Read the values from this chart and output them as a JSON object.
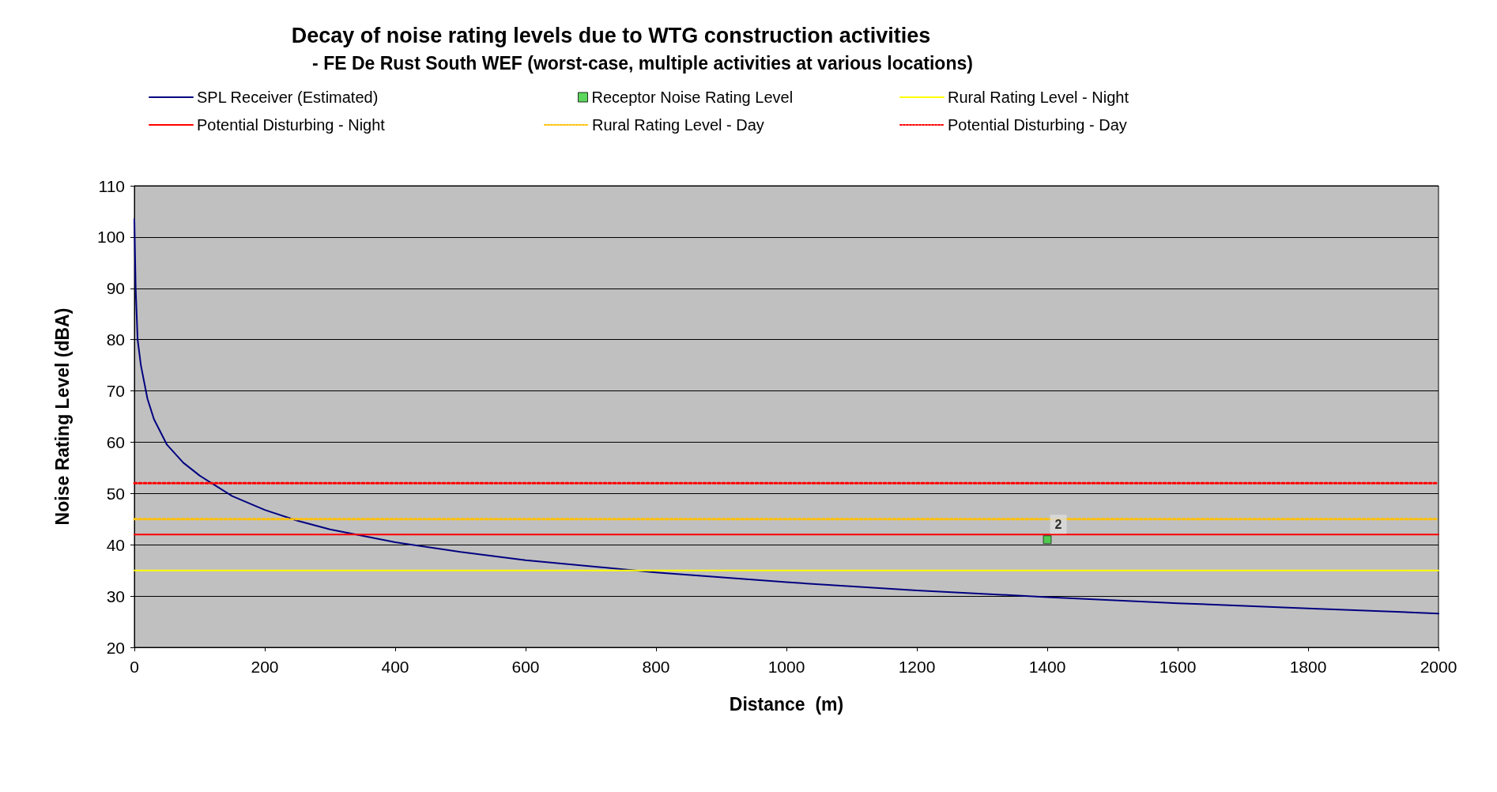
{
  "chart_data": {
    "type": "line",
    "title": "Decay of noise rating levels due to WTG construction activities",
    "subtitle": "- FE De Rust South WEF (worst-case, multiple activities at various locations)",
    "xlabel": "Distance  (m)",
    "ylabel": "Noise Rating Level (dBA)",
    "xlim": [
      0,
      2000
    ],
    "xticks": [
      0,
      200,
      400,
      600,
      800,
      1000,
      1200,
      1400,
      1600,
      1800,
      2000
    ],
    "ylim": [
      20,
      110
    ],
    "yticks": [
      20,
      30,
      40,
      50,
      60,
      70,
      80,
      90,
      100,
      110
    ],
    "grid": "y",
    "legend": "top",
    "annotations": [
      {
        "text": "2",
        "x": 1400,
        "y": 41
      }
    ],
    "series": [
      {
        "name": "SPL Receiver (Estimated)",
        "type": "line",
        "color": "#000080",
        "line_style": "solid",
        "marker": "none",
        "x": [
          0,
          2,
          5,
          10,
          20,
          30,
          50,
          75,
          100,
          150,
          200,
          250,
          300,
          400,
          500,
          600,
          800,
          1000,
          1200,
          1400,
          1600,
          1800,
          2000
        ],
        "values": [
          103.5,
          90,
          80,
          75,
          68.5,
          64.5,
          59.5,
          56,
          53.5,
          49.5,
          46.8,
          44.7,
          43,
          40.5,
          38.6,
          37,
          34.6,
          32.7,
          31.1,
          29.8,
          28.6,
          27.6,
          26.6
        ]
      },
      {
        "name": "Receptor Noise Rating Level",
        "type": "scatter",
        "color": "#33cc33",
        "marker": "square",
        "x": [
          1400
        ],
        "values": [
          41
        ]
      },
      {
        "name": "Rural Rating Level - Night",
        "type": "line",
        "color": "#ffff00",
        "line_style": "solid",
        "marker": "none",
        "x": [
          0,
          2000
        ],
        "values": [
          35,
          35
        ]
      },
      {
        "name": "Potential Disturbing - Night",
        "type": "line",
        "color": "#ff0000",
        "line_style": "solid",
        "marker": "none",
        "x": [
          0,
          2000
        ],
        "values": [
          42,
          42
        ]
      },
      {
        "name": "Rural Rating Level - Day",
        "type": "line",
        "color": "#ffc000",
        "line_style": "dotted",
        "marker": "none",
        "x": [
          0,
          2000
        ],
        "values": [
          45,
          45
        ]
      },
      {
        "name": "Potential Disturbing - Day",
        "type": "line",
        "color": "#ff0000",
        "line_style": "dotted",
        "marker": "none",
        "x": [
          0,
          2000
        ],
        "values": [
          52,
          52
        ]
      }
    ]
  }
}
